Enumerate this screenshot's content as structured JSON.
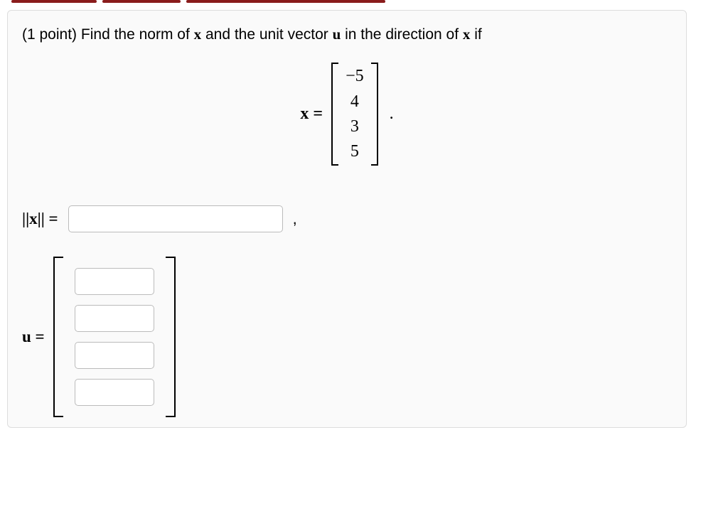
{
  "problem": {
    "points_label": "(1 point)",
    "prompt_pre": "Find the norm of ",
    "x_var": "x",
    "prompt_mid": " and the unit vector ",
    "u_var": "u",
    "prompt_post": " in the direction of ",
    "prompt_end": " if"
  },
  "vector_x": {
    "lhs": "x =",
    "entries": [
      "−5",
      "4",
      "3",
      "5"
    ],
    "trailing": "."
  },
  "answers": {
    "norm_label": "||x|| =",
    "norm_value": "",
    "comma": ",",
    "u_label": "u =",
    "u_values": [
      "",
      "",
      "",
      ""
    ]
  },
  "style": {
    "box_border": "#dddddd",
    "box_bg": "#fafafa",
    "text_color": "#000000",
    "input_border": "#bbbbbb",
    "topbar_color": "#8a1c1c",
    "font_main": "Arial, Helvetica, sans-serif",
    "font_math": "Times New Roman, serif",
    "prompt_fontsize": 21,
    "math_fontsize": 24
  }
}
